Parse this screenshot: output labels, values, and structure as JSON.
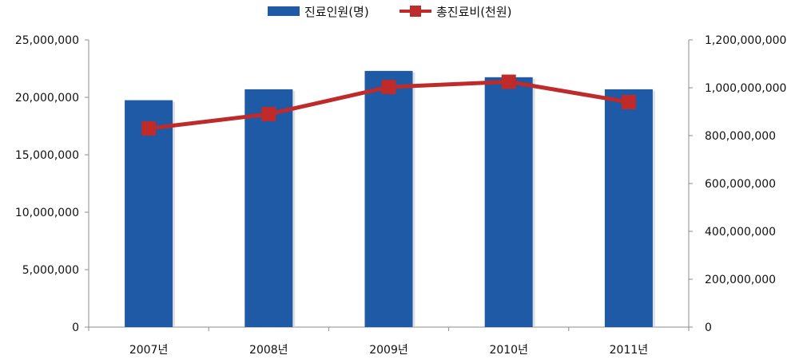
{
  "chart_data": {
    "type": "bar",
    "categories": [
      "2007년",
      "2008년",
      "2009년",
      "2010년",
      "2011년"
    ],
    "series": [
      {
        "name": "진료인원(명)",
        "type": "bar",
        "axis": "left",
        "color": "#1F5AA6",
        "values": [
          19750000,
          20700000,
          22300000,
          21750000,
          20700000
        ]
      },
      {
        "name": "총진료비(천원)",
        "type": "line",
        "axis": "right",
        "color": "#BF2A2A",
        "values": [
          830000000,
          890000000,
          1003000000,
          1025000000,
          940000000
        ]
      }
    ],
    "y_left": {
      "range": [
        0,
        25000000
      ],
      "ticks": [
        "0",
        "5,000,000",
        "10,000,000",
        "15,000,000",
        "20,000,000",
        "25,000,000"
      ]
    },
    "y_right": {
      "range": [
        0,
        1200000000
      ],
      "ticks": [
        "0",
        "200,000,000",
        "400,000,000",
        "600,000,000",
        "800,000,000",
        "1,000,000,000",
        "1,200,000,000"
      ]
    },
    "legend_position": "top-center",
    "grid": false
  }
}
